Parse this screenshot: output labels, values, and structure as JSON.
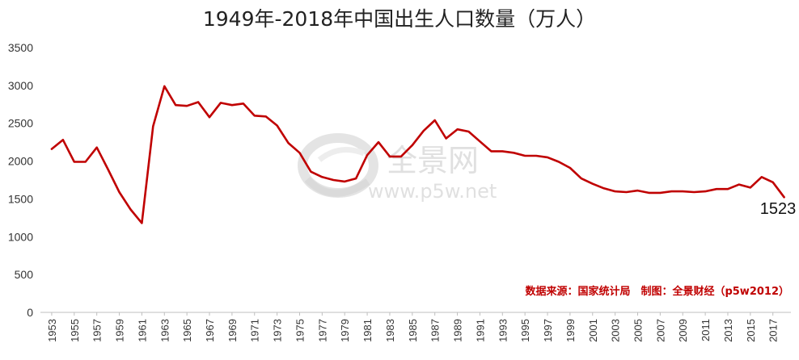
{
  "colors": {
    "line": "#c00000",
    "source": "#c00000",
    "axis": "#bfbfbf",
    "watermark": "#c8c8c8"
  },
  "watermark": {
    "brand": "全景网",
    "url": "www.p5w.net"
  },
  "chart_data": {
    "type": "line",
    "title": "1949年-2018年中国出生人口数量（万人）",
    "xlabel": "",
    "ylabel": "",
    "ylim": [
      0,
      3500
    ],
    "yticks": [
      0,
      500,
      1000,
      1500,
      2000,
      2500,
      3000,
      3500
    ],
    "xticks": [
      "1953",
      "1955",
      "1957",
      "1959",
      "1961",
      "1963",
      "1965",
      "1967",
      "1969",
      "1971",
      "1973",
      "1975",
      "1977",
      "1979",
      "1981",
      "1983",
      "1985",
      "1987",
      "1989",
      "1991",
      "1993",
      "1995",
      "1997",
      "1999",
      "2001",
      "2003",
      "2005",
      "2007",
      "2009",
      "2011",
      "2013",
      "2015",
      "2017"
    ],
    "grid": false,
    "legend": "none",
    "source_note": "数据来源：国家统计局　制图：全景财经（p5w2012）",
    "end_label": "1523",
    "series": [
      {
        "x": [
          1953,
          1954,
          1955,
          1956,
          1957,
          1958,
          1959,
          1960,
          1961,
          1962,
          1963,
          1964,
          1965,
          1966,
          1967,
          1968,
          1969,
          1970,
          1971,
          1972,
          1973,
          1974,
          1975,
          1976,
          1977,
          1978,
          1979,
          1980,
          1981,
          1982,
          1983,
          1984,
          1985,
          1986,
          1987,
          1988,
          1989,
          1990,
          1991,
          1992,
          1993,
          1994,
          1995,
          1996,
          1997,
          1998,
          1999,
          2000,
          2001,
          2002,
          2003,
          2004,
          2005,
          2006,
          2007,
          2008,
          2009,
          2010,
          2011,
          2012,
          2013,
          2014,
          2015,
          2016,
          2017,
          2018
        ],
        "values": [
          2160,
          2280,
          1990,
          1990,
          2180,
          1890,
          1590,
          1360,
          1180,
          2460,
          2990,
          2740,
          2730,
          2780,
          2580,
          2770,
          2740,
          2760,
          2600,
          2590,
          2470,
          2240,
          2110,
          1860,
          1790,
          1750,
          1730,
          1770,
          2080,
          2250,
          2060,
          2060,
          2210,
          2400,
          2540,
          2300,
          2420,
          2390,
          2260,
          2130,
          2130,
          2110,
          2070,
          2070,
          2050,
          1990,
          1910,
          1770,
          1700,
          1640,
          1600,
          1590,
          1610,
          1580,
          1580,
          1600,
          1600,
          1590,
          1600,
          1630,
          1630,
          1690,
          1650,
          1790,
          1720,
          1523
        ]
      }
    ]
  }
}
